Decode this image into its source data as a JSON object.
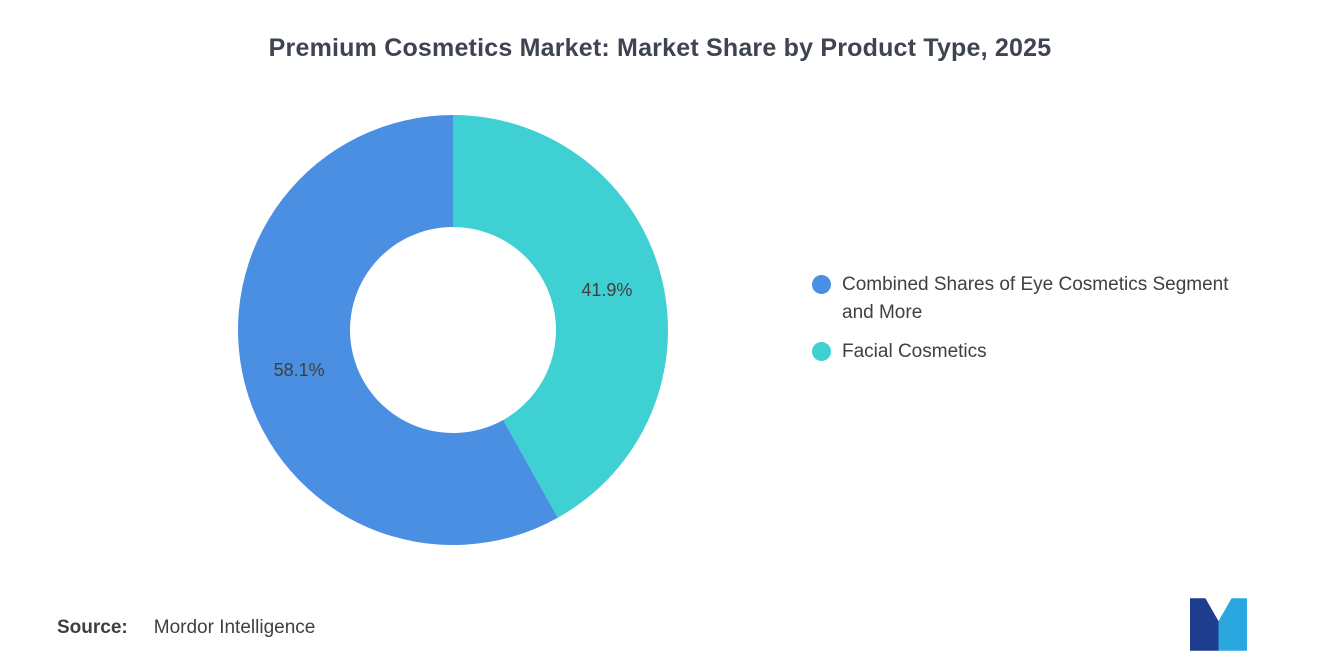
{
  "title": "Premium Cosmetics Market: Market Share by Product Type, 2025",
  "source": {
    "label": "Source:",
    "value": "Mordor Intelligence"
  },
  "logo": {
    "name": "mordor-intelligence-logo",
    "dark_color": "#1E3D8F",
    "light_color": "#2BA7DF"
  },
  "chart_data": {
    "type": "pie",
    "subtype": "donut",
    "title": "Premium Cosmetics Market: Market Share by Product Type, 2025",
    "start_angle_deg": 0,
    "direction": "clockwise",
    "inner_radius_ratio": 0.48,
    "data_label_color": "#3F3F3F",
    "legend_position": "right",
    "slices": [
      {
        "label": "Facial Cosmetics",
        "value": 41.9,
        "display": "41.9%",
        "color": "#3FD0D4"
      },
      {
        "label": "Combined Shares of Eye Cosmetics Segment and More",
        "value": 58.1,
        "display": "58.1%",
        "color": "#4A8FE1"
      }
    ],
    "legend": [
      {
        "label": "Combined Shares of Eye Cosmetics Segment and More",
        "color": "#4A8FE1"
      },
      {
        "label": "Facial Cosmetics",
        "color": "#3FD0D4"
      }
    ]
  }
}
